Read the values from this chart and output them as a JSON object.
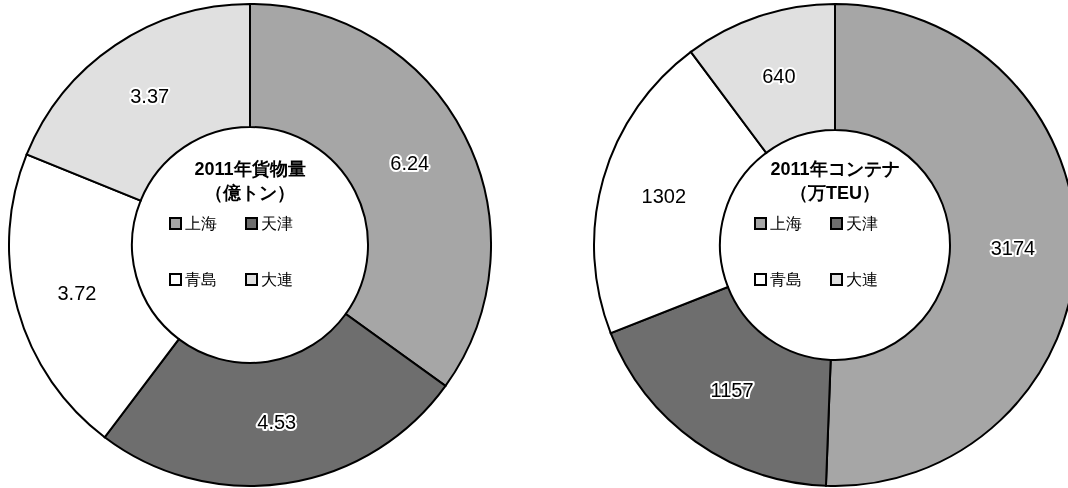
{
  "chart_data": [
    {
      "type": "donut",
      "title": "2011年貨物量",
      "subtitle": "（億トン）",
      "categories": [
        "上海",
        "天津",
        "青島",
        "大連"
      ],
      "values": [
        6.24,
        4.53,
        3.72,
        3.37
      ],
      "colors": [
        "#a6a6a6",
        "#6e6e6e",
        "#ffffff",
        "#e0e0e0"
      ],
      "data_labels": true,
      "legend": "center"
    },
    {
      "type": "donut",
      "title": "2011年コンテナ",
      "subtitle": "（万TEU）",
      "categories": [
        "上海",
        "天津",
        "青島",
        "大連"
      ],
      "values": [
        3174,
        1157,
        1302,
        640
      ],
      "colors": [
        "#a6a6a6",
        "#6e6e6e",
        "#ffffff",
        "#e0e0e0"
      ],
      "data_labels": true,
      "legend": "center"
    }
  ]
}
